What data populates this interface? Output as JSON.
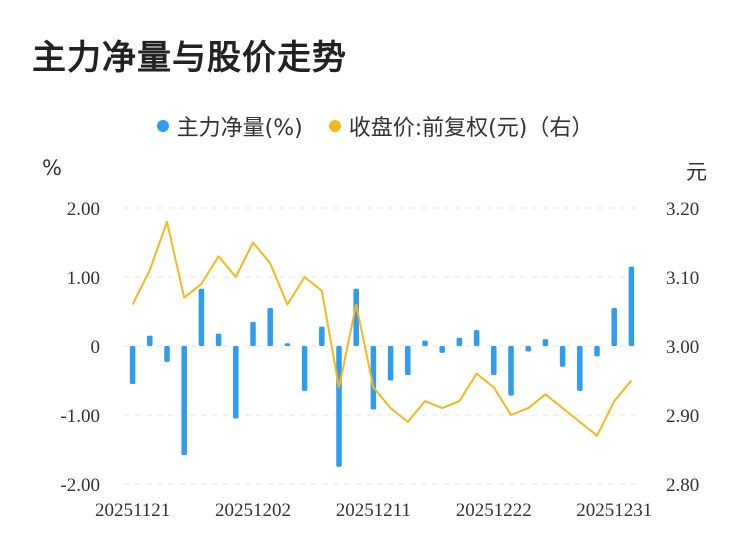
{
  "title": "主力净量与股价走势",
  "legend": {
    "series1": "主力净量(%)",
    "series2": "收盘价:前复权(元)（右）"
  },
  "units": {
    "left": "%",
    "right": "元"
  },
  "colors": {
    "bar": "#2e9cf0",
    "line": "#f2b81c",
    "grid": "#e6e6e6",
    "text": "#333333"
  },
  "chart_data": {
    "type": "bar",
    "title": "主力净量与股价走势",
    "x_tick_labels": [
      "20251121",
      "20251202",
      "20251211",
      "20251222",
      "20251231"
    ],
    "left_axis": {
      "unit": "%",
      "ylim": [
        -2.0,
        2.0
      ],
      "ticks": [
        "2.00",
        "1.00",
        "0",
        "-1.00",
        "-2.00"
      ]
    },
    "right_axis": {
      "unit": "元",
      "ylim": [
        2.8,
        3.2
      ],
      "ticks": [
        "3.20",
        "3.10",
        "3.00",
        "2.90",
        "2.80"
      ]
    },
    "grid": true,
    "legend_position": "top-center",
    "series": [
      {
        "name": "主力净量(%)",
        "type": "bar",
        "axis": "left",
        "values": [
          -0.55,
          0.15,
          -0.23,
          -1.58,
          0.83,
          0.18,
          -1.05,
          0.35,
          0.55,
          0.04,
          -0.65,
          0.28,
          -1.75,
          0.83,
          -0.92,
          -0.5,
          -0.42,
          0.08,
          -0.1,
          0.12,
          0.23,
          -0.42,
          -0.72,
          -0.08,
          0.1,
          -0.3,
          -0.65,
          -0.15,
          0.55,
          1.15
        ]
      },
      {
        "name": "收盘价:前复权(元)（右）",
        "type": "line",
        "axis": "right",
        "values": [
          3.06,
          3.11,
          3.18,
          3.07,
          3.09,
          3.13,
          3.1,
          3.15,
          3.12,
          3.06,
          3.1,
          3.08,
          2.94,
          3.06,
          2.94,
          2.91,
          2.89,
          2.92,
          2.91,
          2.92,
          2.96,
          2.94,
          2.9,
          2.91,
          2.93,
          2.91,
          2.89,
          2.87,
          2.92,
          2.95
        ]
      }
    ]
  }
}
